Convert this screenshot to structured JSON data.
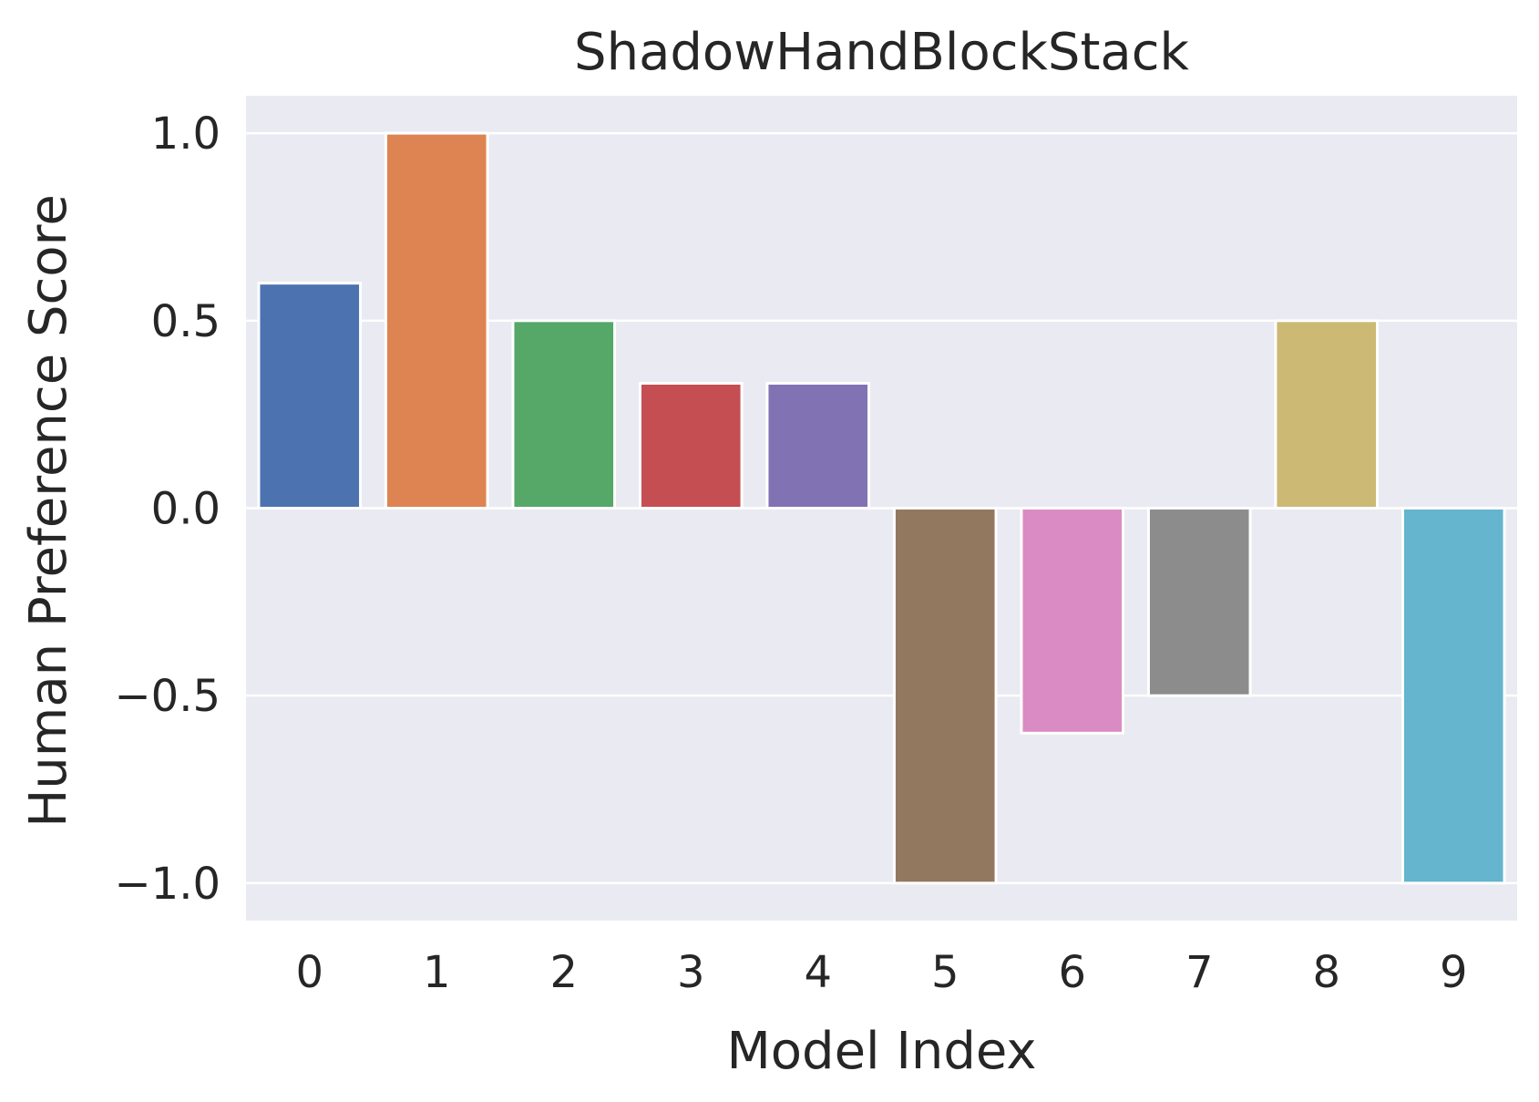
{
  "chart_data": {
    "type": "bar",
    "title": "ShadowHandBlockStack",
    "xlabel": "Model Index",
    "ylabel": "Human Preference Score",
    "categories": [
      "0",
      "1",
      "2",
      "3",
      "4",
      "5",
      "6",
      "7",
      "8",
      "9"
    ],
    "values": [
      0.6,
      1.0,
      0.5,
      0.333,
      0.333,
      -1.0,
      -0.6,
      -0.5,
      0.5,
      -1.0
    ],
    "ylim": [
      -1.1,
      1.1
    ],
    "yticks": [
      -1.0,
      -0.5,
      0.0,
      0.5,
      1.0
    ],
    "ytick_labels": [
      "−1.0",
      "−0.5",
      "0.0",
      "0.5",
      "1.0"
    ],
    "grid": true,
    "legend": "none",
    "style": {
      "background": "#eaeaf2",
      "grid_color": "#ffffff",
      "bar_edge": "#ffffff",
      "bar_colors": [
        "#4c72b0",
        "#dd8452",
        "#55a868",
        "#c44e52",
        "#8172b3",
        "#937860",
        "#da8bc3",
        "#8c8c8c",
        "#ccb974",
        "#64b5cd"
      ]
    }
  }
}
